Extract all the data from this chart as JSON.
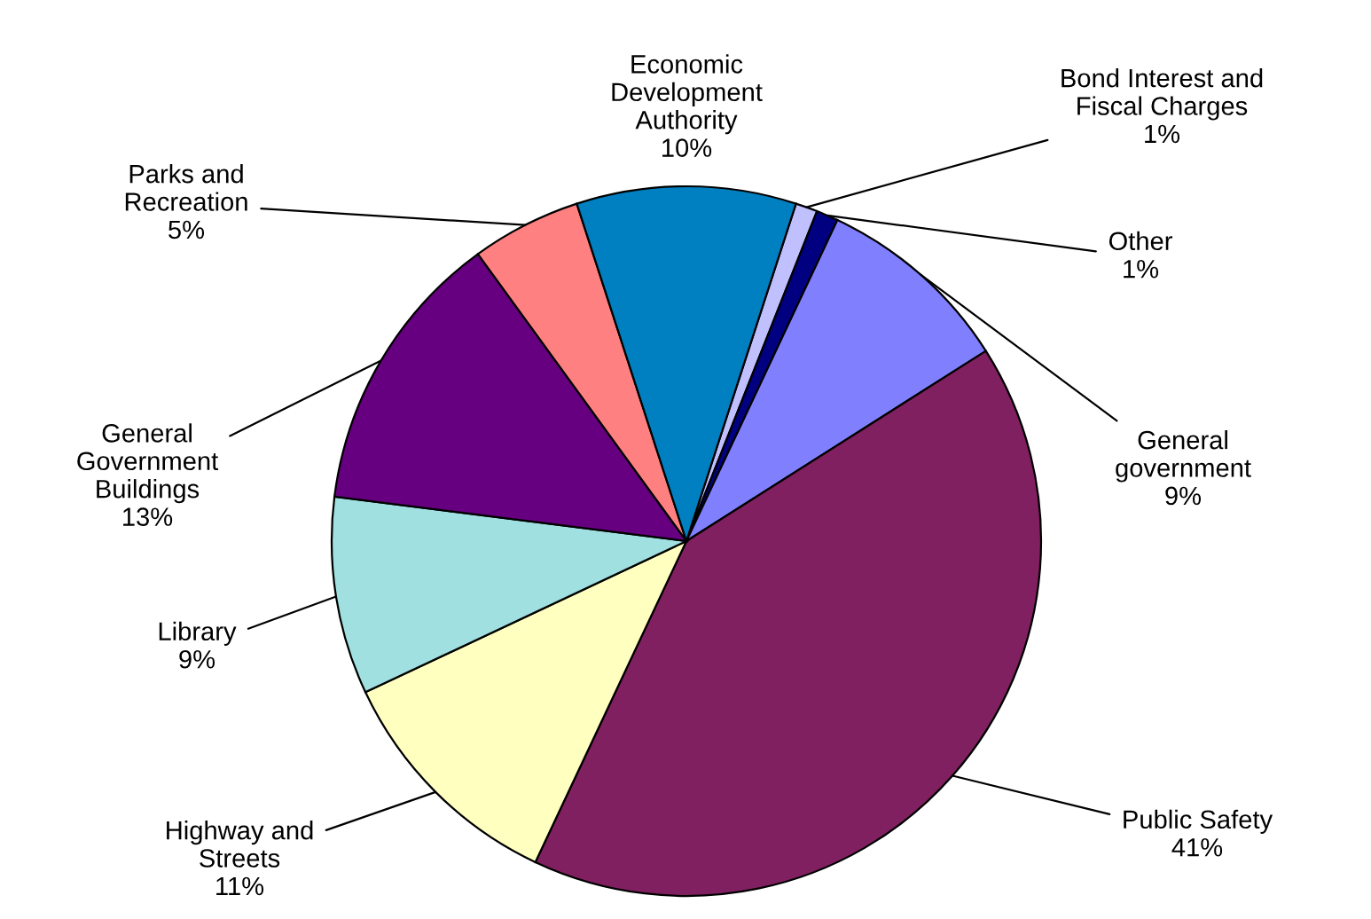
{
  "chart_data": {
    "type": "pie",
    "categories": [
      "Bond Interest and\nFiscal Charges",
      "Other",
      "General\ngovernment",
      "Public Safety",
      "Highway and\nStreets",
      "Library",
      "General\nGovernment\nBuildings",
      "Parks and\nRecreation",
      "Economic\nDevelopment\nAuthority"
    ],
    "values": [
      1,
      1,
      9,
      41,
      11,
      9,
      13,
      5,
      10
    ],
    "value_labels": [
      "1%",
      "1%",
      "9%",
      "41%",
      "11%",
      "9%",
      "13%",
      "5%",
      "10%"
    ],
    "colors": [
      "#c0c0ff",
      "#000080",
      "#8080ff",
      "#802060",
      "#ffffc0",
      "#a0e0e0",
      "#660080",
      "#ff8080",
      "#0080c0"
    ],
    "legend": false
  }
}
